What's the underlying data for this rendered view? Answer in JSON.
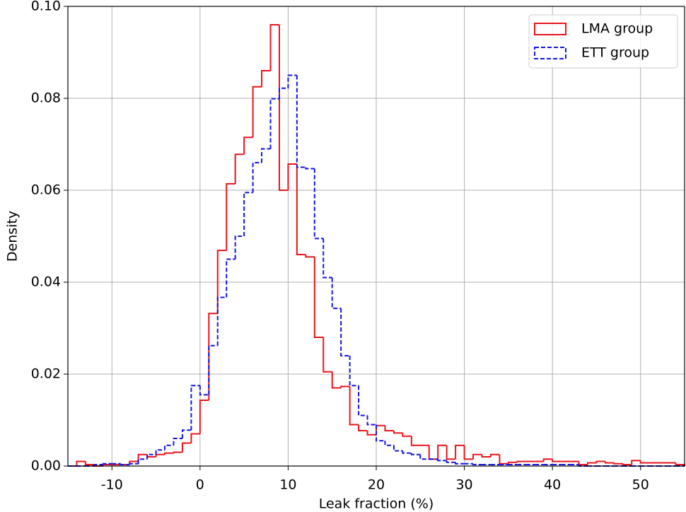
{
  "chart_data": {
    "type": "histogram",
    "xlabel": "Leak fraction (%)",
    "ylabel": "Density",
    "bins": [
      -15,
      -14,
      -13,
      -12,
      -11,
      -10,
      -9,
      -8,
      -7,
      -6,
      -5,
      -4,
      -3,
      -2,
      -1,
      0,
      1,
      2,
      3,
      4,
      5,
      6,
      7,
      8,
      9,
      10,
      11,
      12,
      13,
      14,
      15,
      16,
      17,
      18,
      19,
      20,
      21,
      22,
      23,
      24,
      25,
      26,
      27,
      28,
      29,
      30,
      31,
      32,
      33,
      34,
      35,
      36,
      37,
      38,
      39,
      40,
      41,
      42,
      43,
      44,
      45,
      46,
      47,
      48,
      49,
      50,
      51,
      52,
      53,
      54,
      55
    ],
    "series": [
      {
        "name": "LMA group",
        "color": "#e8141b",
        "linestyle": "solid",
        "values": [
          0,
          0.001,
          0.0003,
          0,
          0.0003,
          0.0003,
          0.0003,
          0.001,
          0.0025,
          0.002,
          0.0025,
          0.0028,
          0.003,
          0.005,
          0.007,
          0.0143,
          0.0332,
          0.0469,
          0.0614,
          0.0678,
          0.0715,
          0.0825,
          0.086,
          0.096,
          0.06,
          0.0657,
          0.046,
          0.0455,
          0.028,
          0.0205,
          0.017,
          0.0173,
          0.009,
          0.0077,
          0.0068,
          0.0088,
          0.0077,
          0.0072,
          0.0065,
          0.0045,
          0.0045,
          0.0015,
          0.0045,
          0.0015,
          0.0045,
          0.0015,
          0.0025,
          0.002,
          0.0025,
          0.0005,
          0.0008,
          0.001,
          0.001,
          0.001,
          0.0015,
          0.001,
          0.001,
          0.001,
          0.0003,
          0.0007,
          0.001,
          0.0007,
          0.0005,
          0.0003,
          0.0012,
          0.0007,
          0.0007,
          0.0007,
          0.0007,
          0.0003
        ]
      },
      {
        "name": "ETT group",
        "color": "#1515e0",
        "linestyle": "dashed",
        "values": [
          0,
          0,
          0,
          0.0003,
          0.0005,
          0.0005,
          0.0003,
          0.0005,
          0.0015,
          0.0025,
          0.0035,
          0.0045,
          0.006,
          0.0078,
          0.0175,
          0.0155,
          0.0262,
          0.0367,
          0.045,
          0.05,
          0.0595,
          0.066,
          0.069,
          0.0799,
          0.0822,
          0.085,
          0.065,
          0.0647,
          0.0495,
          0.041,
          0.0343,
          0.024,
          0.0175,
          0.011,
          0.009,
          0.0055,
          0.0045,
          0.0033,
          0.0028,
          0.0025,
          0.0015,
          0.0015,
          0.0012,
          0.0008,
          0.0005,
          0.0005,
          0.0003,
          0.0003,
          0.0003,
          0.0003,
          0.0003,
          0.0003,
          0.0003,
          0.0003,
          0.0003,
          0.0003,
          0.0003,
          0.0003,
          0,
          0,
          0,
          0,
          0,
          0,
          0,
          0,
          0,
          0,
          0,
          0
        ]
      }
    ],
    "xlim": [
      -15,
      55
    ],
    "xticks": [
      -10,
      0,
      10,
      20,
      30,
      40,
      50
    ],
    "ylim": [
      0,
      0.1
    ],
    "yticks": [
      {
        "value": 0,
        "label": "0.00"
      },
      {
        "value": 0.02,
        "label": "0.02"
      },
      {
        "value": 0.04,
        "label": "0.04"
      },
      {
        "value": 0.06,
        "label": "0.06"
      },
      {
        "value": 0.08,
        "label": "0.08"
      },
      {
        "value": 0.1,
        "label": "0.10"
      }
    ],
    "grid": true,
    "legend": "upper right"
  }
}
